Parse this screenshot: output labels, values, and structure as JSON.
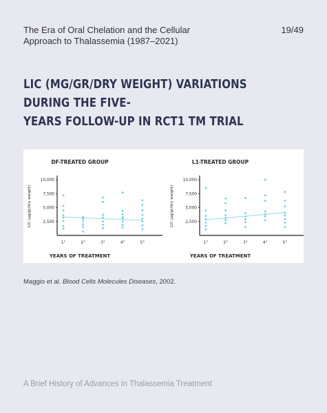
{
  "header": {
    "title_line1": "The Era of Oral Chelation and the Cellular",
    "title_line2": "Approach to Thalassemia  (1987–2021)",
    "page_number": "19/49"
  },
  "slide": {
    "heading_line1": "LIC (µg/gr/dry weight) variations during the five-",
    "heading_line2": "years follow-up in RCT1 TM trial"
  },
  "citation": {
    "authors": "Maggio et al.",
    "journal": "Blood Cells Molecules Diseases",
    "year": ", 2002."
  },
  "footer": {
    "text": "A Brief History of Advances in Thalassemia Treatment"
  },
  "colors": {
    "marker": "#7fd3e0",
    "trend": "#a6e3ec",
    "axis": "#222222"
  },
  "chart_data": [
    {
      "type": "scatter",
      "title": "DF-TREATED GROUP",
      "xlabel": "YEARS OF TREATMENT",
      "ylabel": "LIC (µg/gr/dry weight)",
      "categories": [
        "1°",
        "2°",
        "3°",
        "4°",
        "5°"
      ],
      "yticks": [
        "2,500",
        "5,000",
        "7,500",
        "10,000"
      ],
      "ylim": [
        0,
        11000
      ],
      "points": [
        {
          "x": 1,
          "y": 7200
        },
        {
          "x": 1,
          "y": 5300
        },
        {
          "x": 1,
          "y": 4500
        },
        {
          "x": 1,
          "y": 3600
        },
        {
          "x": 1,
          "y": 3200
        },
        {
          "x": 1,
          "y": 2600
        },
        {
          "x": 1,
          "y": 1700
        },
        {
          "x": 1,
          "y": 1200
        },
        {
          "x": 2,
          "y": 3300
        },
        {
          "x": 2,
          "y": 3000
        },
        {
          "x": 2,
          "y": 2600
        },
        {
          "x": 2,
          "y": 2000
        },
        {
          "x": 2,
          "y": 1500
        },
        {
          "x": 2,
          "y": 700
        },
        {
          "x": 3,
          "y": 6800
        },
        {
          "x": 3,
          "y": 6000
        },
        {
          "x": 3,
          "y": 3700
        },
        {
          "x": 3,
          "y": 3200
        },
        {
          "x": 3,
          "y": 2500
        },
        {
          "x": 3,
          "y": 1900
        },
        {
          "x": 3,
          "y": 1300
        },
        {
          "x": 4,
          "y": 7700
        },
        {
          "x": 4,
          "y": 4400
        },
        {
          "x": 4,
          "y": 3800
        },
        {
          "x": 4,
          "y": 3300
        },
        {
          "x": 4,
          "y": 3000
        },
        {
          "x": 4,
          "y": 2500
        },
        {
          "x": 4,
          "y": 1900
        },
        {
          "x": 4,
          "y": 1400
        },
        {
          "x": 5,
          "y": 6300
        },
        {
          "x": 5,
          "y": 5500
        },
        {
          "x": 5,
          "y": 4500
        },
        {
          "x": 5,
          "y": 3700
        },
        {
          "x": 5,
          "y": 3000
        },
        {
          "x": 5,
          "y": 2500
        },
        {
          "x": 5,
          "y": 1800
        },
        {
          "x": 5,
          "y": 1100
        }
      ],
      "trend": [
        {
          "x": 1,
          "y": 3300
        },
        {
          "x": 5,
          "y": 2700
        }
      ]
    },
    {
      "type": "scatter",
      "title": "L1-TREATED GROUP",
      "xlabel": "YEARS OF TREATMENT",
      "ylabel": "LIC (µg/gr/dry weight)",
      "categories": [
        "1°",
        "2°",
        "3°",
        "4°",
        "5°"
      ],
      "yticks": [
        "2,500",
        "5,000",
        "7,500",
        "10,000"
      ],
      "ylim": [
        0,
        11000
      ],
      "points": [
        {
          "x": 1,
          "y": 8500
        },
        {
          "x": 1,
          "y": 4500
        },
        {
          "x": 1,
          "y": 3500
        },
        {
          "x": 1,
          "y": 2900
        },
        {
          "x": 1,
          "y": 2300
        },
        {
          "x": 1,
          "y": 1700
        },
        {
          "x": 1,
          "y": 1100
        },
        {
          "x": 2,
          "y": 6600
        },
        {
          "x": 2,
          "y": 5800
        },
        {
          "x": 2,
          "y": 4500
        },
        {
          "x": 2,
          "y": 3600
        },
        {
          "x": 2,
          "y": 3100
        },
        {
          "x": 2,
          "y": 2700
        },
        {
          "x": 2,
          "y": 2200
        },
        {
          "x": 3,
          "y": 6700
        },
        {
          "x": 3,
          "y": 4000
        },
        {
          "x": 3,
          "y": 3400
        },
        {
          "x": 3,
          "y": 2900
        },
        {
          "x": 3,
          "y": 2400
        },
        {
          "x": 3,
          "y": 1500
        },
        {
          "x": 4,
          "y": 10000
        },
        {
          "x": 4,
          "y": 7200
        },
        {
          "x": 4,
          "y": 6200
        },
        {
          "x": 4,
          "y": 4300
        },
        {
          "x": 4,
          "y": 3800
        },
        {
          "x": 4,
          "y": 3400
        },
        {
          "x": 4,
          "y": 2700
        },
        {
          "x": 5,
          "y": 7800
        },
        {
          "x": 5,
          "y": 6200
        },
        {
          "x": 5,
          "y": 5200
        },
        {
          "x": 5,
          "y": 4100
        },
        {
          "x": 5,
          "y": 3600
        },
        {
          "x": 5,
          "y": 2900
        },
        {
          "x": 5,
          "y": 2300
        },
        {
          "x": 5,
          "y": 1500
        }
      ],
      "trend": [
        {
          "x": 1,
          "y": 2800
        },
        {
          "x": 5,
          "y": 4100
        }
      ]
    }
  ]
}
